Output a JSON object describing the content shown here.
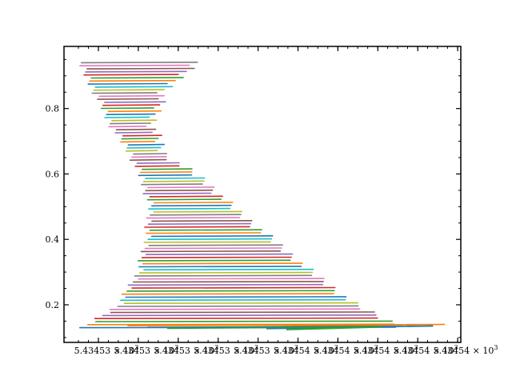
{
  "chart_data": {
    "type": "line",
    "title": "",
    "xlabel": "",
    "ylabel": "",
    "grid": false,
    "legend": "none",
    "x_tick_labels": [
      "5.43453 × 10",
      "5.43453 × 10",
      "5.43453 × 10",
      "5.43453 × 10",
      "5.43453 × 10",
      "5.43454 × 10",
      "5.43454 × 10",
      "5.43454 × 10",
      "5.43454 × 10",
      "5.43454 × 10"
    ],
    "x_tick_exponent": "3",
    "y_ticks": [
      0.2,
      0.4,
      0.6,
      0.8
    ],
    "y_tick_labels": [
      "0.2",
      "0.4",
      "0.6",
      "0.8"
    ],
    "ylim": [
      0.085,
      0.99
    ],
    "xlim": [
      0,
      1
    ],
    "series_colors": [
      "#1f77b4",
      "#ff7f0e",
      "#2ca02c",
      "#d62728",
      "#9467bd",
      "#8c564b",
      "#e377c2",
      "#7f7f7f",
      "#bcbd22",
      "#17becf"
    ],
    "strands": {
      "count": 88,
      "y_range": [
        0.13,
        0.94
      ],
      "left_edge_points": [
        [
          0.94,
          0.04
        ],
        [
          0.85,
          0.08
        ],
        [
          0.75,
          0.12
        ],
        [
          0.66,
          0.17
        ],
        [
          0.58,
          0.2
        ],
        [
          0.5,
          0.22
        ],
        [
          0.4,
          0.21
        ],
        [
          0.3,
          0.19
        ],
        [
          0.2,
          0.14
        ],
        [
          0.13,
          0.05
        ]
      ],
      "right_edge_points": [
        [
          0.94,
          0.33
        ],
        [
          0.85,
          0.25
        ],
        [
          0.75,
          0.22
        ],
        [
          0.66,
          0.25
        ],
        [
          0.58,
          0.35
        ],
        [
          0.5,
          0.42
        ],
        [
          0.4,
          0.52
        ],
        [
          0.3,
          0.62
        ],
        [
          0.2,
          0.73
        ],
        [
          0.13,
          0.85
        ]
      ]
    }
  }
}
